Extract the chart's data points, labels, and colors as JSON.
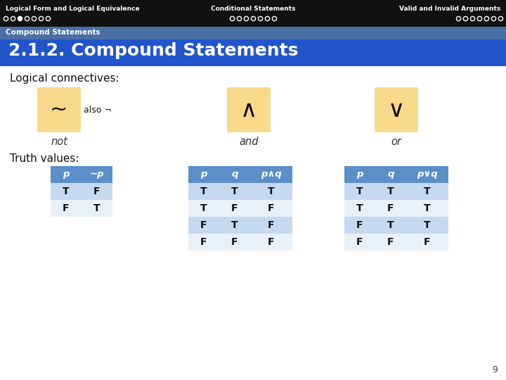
{
  "header_bg": "#111111",
  "header_text_color": "#ffffff",
  "header_left": "Logical Form and Logical Equivalence",
  "header_center": "Conditional Statements",
  "header_right": "Valid and Invalid Arguments",
  "nav_dots_left": [
    false,
    false,
    true,
    false,
    false,
    false,
    false
  ],
  "nav_dots_center": [
    false,
    false,
    false,
    false,
    false,
    false,
    false
  ],
  "nav_dots_right": [
    false,
    false,
    false,
    false,
    false,
    false,
    false
  ],
  "subheader_bg": "#4a6fa5",
  "subheader_text": "Compound Statements",
  "subheader_text_color": "#ffffff",
  "title_bg": "#2255cc",
  "title_text": "2.1.2. Compound Statements",
  "title_text_color": "#ffffff",
  "body_bg": "#ffffff",
  "logical_conn_label": "Logical connectives:",
  "symbol_bg": "#f9d98a",
  "symbols": [
    "~",
    "∧",
    "∨"
  ],
  "symbol_labels": [
    "not",
    "and",
    "or"
  ],
  "also_text": "also ¬",
  "truth_label": "Truth values:",
  "table1_headers": [
    "p",
    "~p"
  ],
  "table1_data": [
    [
      "T",
      "F"
    ],
    [
      "F",
      "T"
    ]
  ],
  "table2_headers": [
    "p",
    "q",
    "p∧q"
  ],
  "table2_data": [
    [
      "T",
      "T",
      "T"
    ],
    [
      "T",
      "F",
      "F"
    ],
    [
      "F",
      "T",
      "F"
    ],
    [
      "F",
      "F",
      "F"
    ]
  ],
  "table3_headers": [
    "p",
    "q",
    "p∨q"
  ],
  "table3_data": [
    [
      "T",
      "T",
      "T"
    ],
    [
      "T",
      "F",
      "T"
    ],
    [
      "F",
      "T",
      "T"
    ],
    [
      "F",
      "F",
      "F"
    ]
  ],
  "table_header_bg": "#5b8fc9",
  "table_row_odd_bg": "#c5d9f1",
  "table_row_even_bg": "#e8f0f8",
  "page_number": "9"
}
